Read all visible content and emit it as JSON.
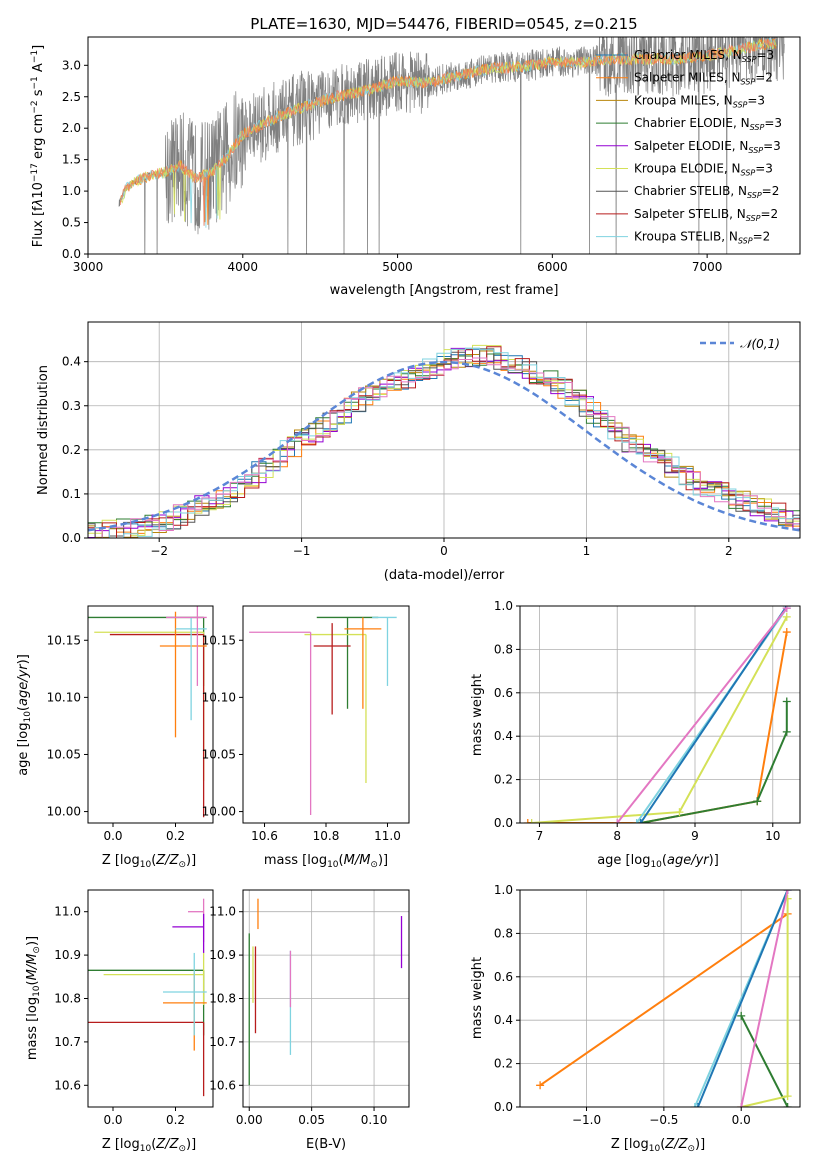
{
  "title": "PLATE=1630, MJD=54476, FIBERID=0545, z=0.215",
  "colors": {
    "Chabrier MILES": "#1f77b4",
    "Salpeter MILES": "#ff7f0e",
    "Kroupa MILES": "#b8860b",
    "Chabrier ELODIE": "#2e7d32",
    "Salpeter ELODIE": "#9400d3",
    "Kroupa ELODIE": "#d4e157",
    "Chabrier STELIB": "#555555",
    "Salpeter STELIB": "#b71c1c",
    "Kroupa STELIB": "#7fd3e0",
    "observed": "#808080",
    "normal": "#5b86d6",
    "model_spec": "#f08060"
  },
  "chart_data": [
    {
      "type": "line",
      "panel": "spectrum",
      "xlabel": "wavelength [Angstrom, rest frame]",
      "ylabel": "Flux [f_λ 10^-17 erg cm^-2 s^-1 A^-1]",
      "xlim": [
        3000,
        7600
      ],
      "ylim": [
        0,
        3.45
      ],
      "xticks": [
        "3000",
        "4000",
        "5000",
        "6000",
        "7000"
      ],
      "yticks": [
        "0.0",
        "0.5",
        "1.0",
        "1.5",
        "2.0",
        "2.5",
        "3.0"
      ],
      "legend_position": "right",
      "legend": [
        "Chabrier MILES, N_SSP=3",
        "Salpeter MILES, N_SSP=2",
        "Kroupa MILES, N_SSP=3",
        "Chabrier ELODIE, N_SSP=3",
        "Salpeter ELODIE, N_SSP=3",
        "Kroupa ELODIE, N_SSP=3",
        "Chabrier STELIB, N_SSP=2",
        "Salpeter STELIB, N_SSP=2",
        "Kroupa STELIB, N_SSP=2"
      ],
      "continuum": {
        "x": [
          3200,
          3250,
          3300,
          3400,
          3500,
          3600,
          3700,
          3800,
          3900,
          4000,
          4200,
          4400,
          4600,
          4800,
          5000,
          5200,
          5400,
          5600,
          5800,
          6000,
          6200,
          6400,
          6600,
          6800,
          7000,
          7200,
          7400
        ],
        "y": [
          0.8,
          1.05,
          1.15,
          1.25,
          1.3,
          1.4,
          1.2,
          1.3,
          1.55,
          1.9,
          2.15,
          2.35,
          2.5,
          2.6,
          2.75,
          2.72,
          2.85,
          2.95,
          2.98,
          3.05,
          3.05,
          3.1,
          3.1,
          3.1,
          3.15,
          3.25,
          3.35
        ]
      }
    },
    {
      "type": "line",
      "panel": "residuals",
      "xlabel": "(data-model)/error",
      "ylabel": "Normed distribution",
      "xlim": [
        -2.5,
        2.5
      ],
      "ylim": [
        0,
        0.49
      ],
      "xticks": [
        "−2",
        "−1",
        "0",
        "1",
        "2"
      ],
      "yticks": [
        "0.0",
        "0.1",
        "0.2",
        "0.3",
        "0.4"
      ],
      "grid": true,
      "legend": [
        "𝒩(0,1)"
      ],
      "legend_position": "top-right",
      "bin_width": 0.1,
      "histogram_shape": {
        "x": [
          -2.5,
          -2.0,
          -1.5,
          -1.0,
          -0.5,
          0.0,
          0.3,
          0.8,
          1.3,
          1.8,
          2.3,
          2.5
        ],
        "y": [
          0.01,
          0.03,
          0.1,
          0.22,
          0.33,
          0.4,
          0.42,
          0.35,
          0.22,
          0.12,
          0.06,
          0.04
        ]
      }
    },
    {
      "type": "scatter",
      "panel": "age_vs_Z",
      "xlabel": "Z [log10(Z/Z⊙)]",
      "ylabel": "age [log10(age/yr)]",
      "xlim": [
        -0.08,
        0.32
      ],
      "ylim": [
        9.99,
        10.18
      ],
      "xticks": [
        "0.0",
        "0.2"
      ],
      "yticks": [
        "10.00",
        "10.05",
        "10.10",
        "10.15"
      ],
      "points": [
        {
          "x": 0.29,
          "y": 10.17,
          "xerr": [
            0.38,
            0
          ],
          "yerr": [
            0.06,
            0
          ]
        },
        {
          "x": 0.29,
          "y": 10.157,
          "xerr": [
            0.35,
            0
          ],
          "yerr": [
            0.13,
            0
          ]
        },
        {
          "x": 0.29,
          "y": 10.155,
          "xerr": [
            0.3,
            0
          ],
          "yerr": [
            0.16,
            0
          ]
        },
        {
          "x": 0.2,
          "y": 10.145,
          "xerr": [
            0.05,
            0.1
          ],
          "yerr": [
            0.08,
            0.03
          ]
        },
        {
          "x": 0.25,
          "y": 10.16,
          "xerr": [
            0.05,
            0.05
          ],
          "yerr": [
            0.08,
            0.01
          ]
        },
        {
          "x": 0.27,
          "y": 10.17,
          "xerr": [
            0.1,
            0.03
          ],
          "yerr": [
            0.06,
            0.01
          ]
        }
      ]
    },
    {
      "type": "scatter",
      "panel": "age_vs_mass",
      "xlabel": "mass [log10(M/M⊙)]",
      "ylabel": "",
      "xlim": [
        10.53,
        11.07
      ],
      "ylim": [
        9.99,
        10.18
      ],
      "xticks": [
        "10.6",
        "10.8",
        "11.0"
      ],
      "yticks": [
        "10.00",
        "10.05",
        "10.10",
        "10.15"
      ],
      "points": [
        {
          "x": 10.87,
          "y": 10.17,
          "xerr": [
            0.1,
            0.1
          ],
          "yerr": [
            0.08,
            0.0
          ]
        },
        {
          "x": 10.93,
          "y": 10.155,
          "xerr": [
            0.2,
            0.0
          ],
          "yerr": [
            0.13,
            0.0
          ]
        },
        {
          "x": 10.82,
          "y": 10.145,
          "xerr": [
            0.06,
            0.06
          ],
          "yerr": [
            0.06,
            0.02
          ]
        },
        {
          "x": 10.92,
          "y": 10.16,
          "xerr": [
            0.06,
            0.06
          ],
          "yerr": [
            0.07,
            0.01
          ]
        },
        {
          "x": 11.0,
          "y": 10.17,
          "xerr": [
            0.05,
            0.03
          ],
          "yerr": [
            0.06,
            0.0
          ]
        },
        {
          "x": 10.75,
          "y": 10.157,
          "xerr": [
            0.2,
            0.0
          ],
          "yerr": [
            0.16,
            0.0
          ]
        }
      ]
    },
    {
      "type": "line",
      "panel": "mass_weight_vs_age",
      "xlabel": "age [log10(age/yr)]",
      "ylabel": "mass weight",
      "xlim": [
        6.75,
        10.35
      ],
      "ylim": [
        0,
        1.0
      ],
      "xticks": [
        "7",
        "8",
        "9",
        "10"
      ],
      "yticks": [
        "0.0",
        "0.2",
        "0.4",
        "0.6",
        "0.8",
        "1.0"
      ],
      "grid": true,
      "series": [
        {
          "color_key": "Salpeter MILES",
          "x": [
            6.85,
            8.3,
            9.8,
            10.18
          ],
          "y": [
            0.0,
            0.0,
            0.1,
            0.88
          ]
        },
        {
          "color_key": "Chabrier ELODIE",
          "x": [
            8.3,
            9.8,
            10.18,
            10.18
          ],
          "y": [
            0.0,
            0.1,
            0.42,
            0.56
          ]
        },
        {
          "color_key": "Kroupa ELODIE",
          "x": [
            6.9,
            8.8,
            10.18
          ],
          "y": [
            0.0,
            0.05,
            0.95
          ]
        },
        {
          "color_key": "Kroupa STELIB",
          "x": [
            8.25,
            10.18
          ],
          "y": [
            0.0,
            0.99
          ]
        },
        {
          "color_key": "Chabrier MILES",
          "x": [
            8.3,
            10.18
          ],
          "y": [
            0.0,
            1.0
          ]
        },
        {
          "color_key": "pink",
          "x": [
            8.0,
            10.18
          ],
          "y": [
            0.0,
            0.99
          ]
        }
      ]
    },
    {
      "type": "scatter",
      "panel": "mass_vs_Z",
      "xlabel": "Z [log10(Z/Z⊙)]",
      "ylabel": "mass [log10(M/M⊙)]",
      "xlim": [
        -0.08,
        0.32
      ],
      "ylim": [
        10.55,
        11.05
      ],
      "xticks": [
        "0.0",
        "0.2"
      ],
      "yticks": [
        "10.6",
        "10.7",
        "10.8",
        "10.9",
        "11.0"
      ],
      "points": [
        {
          "x": 0.29,
          "y": 10.865,
          "xerr": [
            0.38,
            0
          ],
          "yerr": [
            0.15,
            0.0
          ]
        },
        {
          "x": 0.29,
          "y": 10.855,
          "xerr": [
            0.32,
            0
          ],
          "yerr": [
            0.07,
            0.05
          ]
        },
        {
          "x": 0.29,
          "y": 10.745,
          "xerr": [
            0.38,
            0
          ],
          "yerr": [
            0.17,
            0.0
          ]
        },
        {
          "x": 0.26,
          "y": 10.79,
          "xerr": [
            0.1,
            0.04
          ],
          "yerr": [
            0.11,
            0.07
          ]
        },
        {
          "x": 0.26,
          "y": 10.815,
          "xerr": [
            0.1,
            0.04
          ],
          "yerr": [
            0.1,
            0.09
          ]
        },
        {
          "x": 0.29,
          "y": 11.0,
          "xerr": [
            0.05,
            0.0
          ],
          "yerr": [
            0.07,
            0.03
          ]
        },
        {
          "x": 0.29,
          "y": 10.965,
          "xerr": [
            0.1,
            0.0
          ],
          "yerr": [
            0.06,
            0.03
          ]
        }
      ]
    },
    {
      "type": "scatter",
      "panel": "mass_vs_EBV",
      "xlabel": "E(B-V)",
      "ylabel": "",
      "xlim": [
        -0.005,
        0.128
      ],
      "ylim": [
        10.55,
        11.05
      ],
      "xticks": [
        "0.00",
        "0.05",
        "0.10"
      ],
      "yticks": [
        "10.6",
        "10.7",
        "10.8",
        "10.9",
        "11.0"
      ],
      "points": [
        {
          "x": 0.0,
          "y": 10.85,
          "yerr": [
            0.25,
            0.1
          ]
        },
        {
          "x": 0.003,
          "y": 10.86,
          "yerr": [
            0.07,
            0.06
          ]
        },
        {
          "x": 0.005,
          "y": 10.82,
          "yerr": [
            0.1,
            0.1
          ]
        },
        {
          "x": 0.007,
          "y": 11.0,
          "yerr": [
            0.04,
            0.03
          ]
        },
        {
          "x": 0.033,
          "y": 10.79,
          "yerr": [
            0.12,
            0.12
          ]
        },
        {
          "x": 0.033,
          "y": 10.85,
          "yerr": [
            0.07,
            0.06
          ]
        },
        {
          "x": 0.122,
          "y": 10.93,
          "yerr": [
            0.06,
            0.06
          ]
        }
      ]
    },
    {
      "type": "line",
      "panel": "mass_weight_vs_Z",
      "xlabel": "Z [log10(Z/Z⊙)]",
      "ylabel": "mass weight",
      "xlim": [
        -1.43,
        0.38
      ],
      "ylim": [
        0,
        1.0
      ],
      "xticks": [
        "−1.0",
        "−0.5",
        "0.0"
      ],
      "yticks": [
        "0.0",
        "0.2",
        "0.4",
        "0.6",
        "0.8",
        "1.0"
      ],
      "grid": true,
      "series": [
        {
          "color_key": "Salpeter MILES",
          "x": [
            -1.3,
            0.3
          ],
          "y": [
            0.1,
            0.89
          ]
        },
        {
          "color_key": "Chabrier ELODIE",
          "x": [
            0.0,
            0.3
          ],
          "y": [
            0.42,
            0.0
          ]
        },
        {
          "color_key": "Kroupa ELODIE",
          "x": [
            0.0,
            0.3,
            0.3
          ],
          "y": [
            0.0,
            0.05,
            0.96
          ]
        },
        {
          "color_key": "Kroupa STELIB",
          "x": [
            -0.3,
            0.3
          ],
          "y": [
            0.0,
            1.0
          ]
        },
        {
          "color_key": "Chabrier MILES",
          "x": [
            -0.28,
            0.3
          ],
          "y": [
            0.0,
            1.0
          ]
        },
        {
          "color_key": "pink",
          "x": [
            0.0,
            0.3
          ],
          "y": [
            0.0,
            1.0
          ]
        }
      ]
    }
  ]
}
